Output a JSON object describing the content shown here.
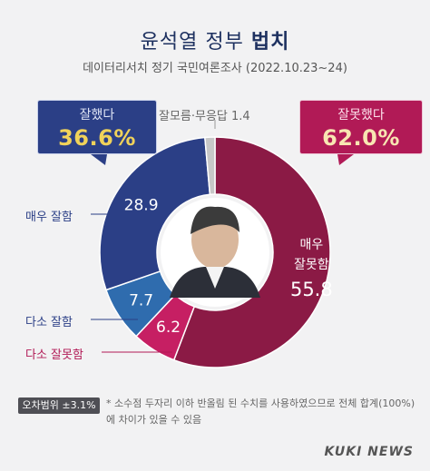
{
  "title": {
    "text": "윤석열 정부",
    "bold": "법치"
  },
  "subtitle": "데이터리서치 정기 국민여론조사 (2022.10.23~24)",
  "badges": {
    "good": {
      "label": "잘했다",
      "value": "36.6%",
      "color": "#2b3f86"
    },
    "bad": {
      "label": "잘못했다",
      "value": "62.0%",
      "color": "#b11a56"
    }
  },
  "na_label": "잘모름·무응답 1.4",
  "side_labels": {
    "very_good": "매우 잘함",
    "some_good": "다소 잘함",
    "some_bad": "다소 잘못함"
  },
  "note": {
    "badge": "오차범위 ±3.1%",
    "text": "* 소수점 두자리 이하 반올림 된 수치를 사용하였으므로 전체 합계(100%)에 차이가 있을 수 있음"
  },
  "brand": "KUKI NEWS",
  "chart_data": {
    "type": "pie",
    "title": "윤석열 정부 법치",
    "categories": [
      "매우 잘못함",
      "다소 잘못함",
      "다소 잘함",
      "매우 잘함",
      "잘모름·무응답"
    ],
    "values": [
      55.8,
      6.2,
      7.7,
      28.9,
      1.4
    ],
    "colors": [
      "#8b1a45",
      "#c61f63",
      "#2f6cae",
      "#2b3f86",
      "#c7c7c7"
    ],
    "value_labels": [
      "55.8",
      "6.2",
      "7.7",
      "28.9",
      ""
    ],
    "inner_labels": {
      "very_bad_1": "매우",
      "very_bad_2": "잘못함"
    },
    "start_angle_deg": 0
  }
}
